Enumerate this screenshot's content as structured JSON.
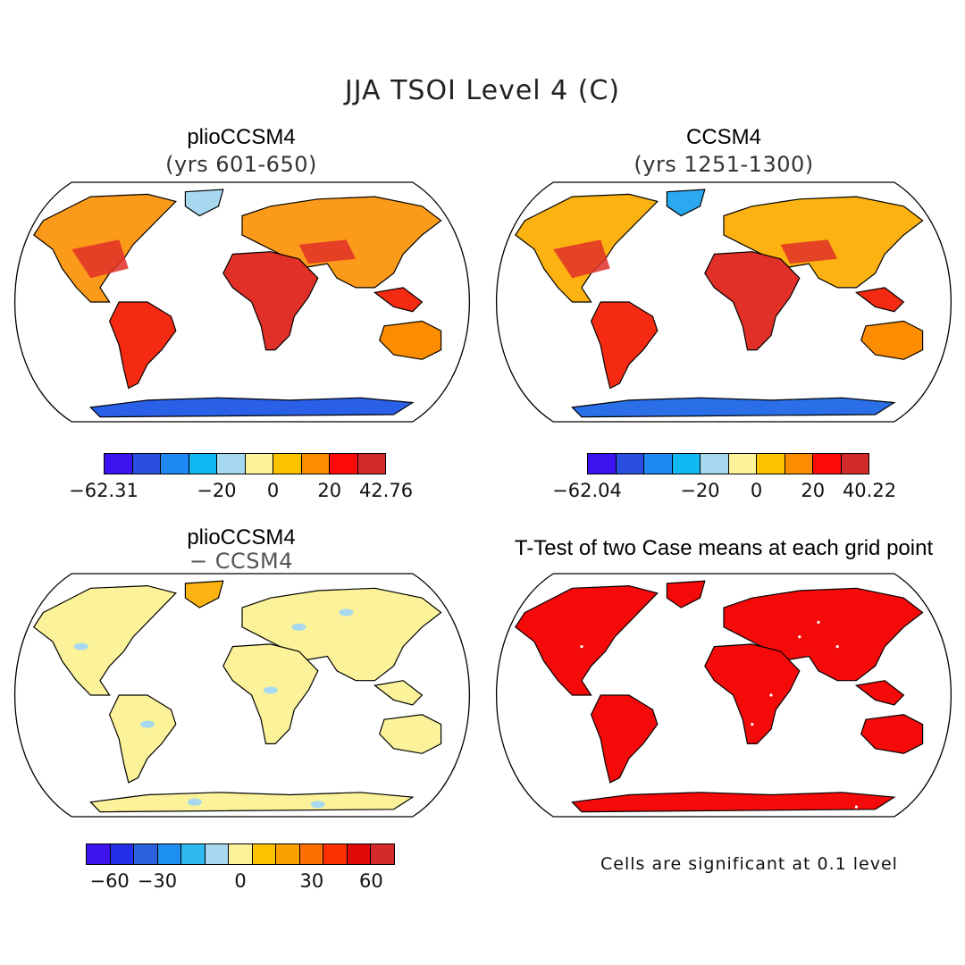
{
  "title": "JJA TSOI Level 4 (C)",
  "panels": [
    {
      "id": "plio",
      "title": "plioCCSM4",
      "subtitle": "(yrs 601-650)",
      "colorbar": {
        "colors": [
          "#3d14f0",
          "#2a4fe0",
          "#1e88f5",
          "#12b8f2",
          "#a6d8f0",
          "#fbf29a",
          "#fcc200",
          "#fc8c00",
          "#fc0a0a",
          "#d42a2a"
        ],
        "labels": [
          "−62.31",
          "−20",
          "0",
          "20",
          "42.76"
        ]
      },
      "fills": {
        "north": "#fc9a1a",
        "mid": "#f52a12",
        "tropics": "#e03028",
        "south": "#fc8c00",
        "ice": "#2a5fe8",
        "greenland": "#a6d8f0"
      }
    },
    {
      "id": "ccsm4",
      "title": "CCSM4",
      "subtitle": "(yrs 1251-1300)",
      "colorbar": {
        "colors": [
          "#3d14f0",
          "#2a4fe0",
          "#1e88f5",
          "#12b8f2",
          "#a6d8f0",
          "#fbf29a",
          "#fcc200",
          "#fc8c00",
          "#fc0a0a",
          "#d42a2a"
        ],
        "labels": [
          "−62.04",
          "−20",
          "0",
          "20",
          "40.22"
        ]
      },
      "fills": {
        "north": "#fcb210",
        "mid": "#f52a12",
        "tropics": "#e03028",
        "south": "#fc8c00",
        "ice": "#2a6fe8",
        "greenland": "#2aa8f0"
      }
    },
    {
      "id": "diff",
      "title": "plioCCSM4",
      "subtitle": "− CCSM4",
      "colorbar": {
        "colors": [
          "#3d14f0",
          "#2430e8",
          "#2a62e0",
          "#1e90f0",
          "#30b8f0",
          "#a6d8f0",
          "#fbf29a",
          "#fcc200",
          "#fca000",
          "#fc7000",
          "#fc3000",
          "#e00a0a",
          "#d42a2a"
        ],
        "labels": [
          "−60",
          "−30",
          "0",
          "30",
          "60"
        ]
      },
      "fills": {
        "north": "#fbf29a",
        "mid": "#fbf29a",
        "tropics": "#fbf29a",
        "south": "#fbf29a",
        "ice": "#fbf29a",
        "greenland": "#fcb210"
      }
    },
    {
      "id": "ttest",
      "title": "T-Test of two Case means at each grid point",
      "fills": {
        "north": "#f50a0a",
        "mid": "#f50a0a",
        "tropics": "#f50a0a",
        "south": "#f50a0a",
        "ice": "#f50a0a",
        "greenland": "#f50a0a"
      }
    }
  ],
  "note": "Cells are significant at 0.1 level"
}
